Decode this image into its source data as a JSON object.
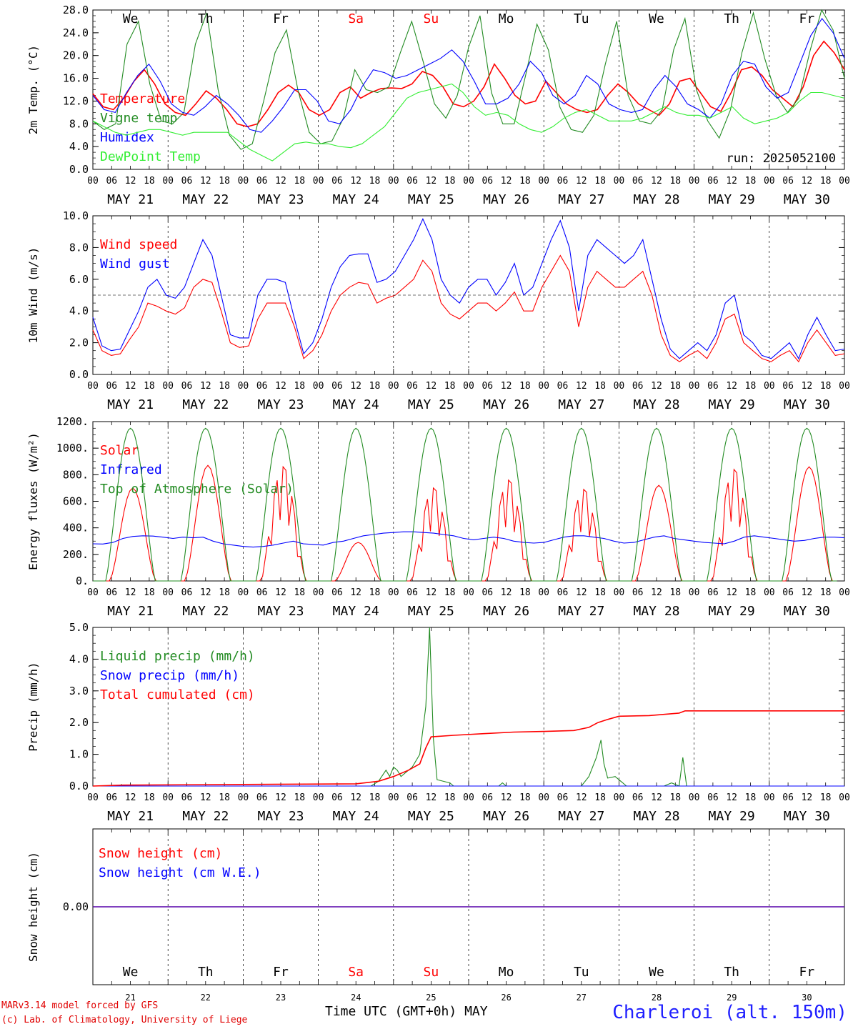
{
  "chart_data": [
    {
      "type": "line",
      "ylabel": "2m Temp. (°C)",
      "ylim": [
        0,
        28
      ],
      "yticks": [
        "0.0",
        "4.0",
        "8.0",
        "12.0",
        "16.0",
        "20.0",
        "24.0",
        "28.0"
      ],
      "grid": "vertical dashed per day",
      "annotation": "run: 2025052100",
      "day_letters": [
        {
          "label": "We",
          "color": "#000000"
        },
        {
          "label": "Th",
          "color": "#000000"
        },
        {
          "label": "Fr",
          "color": "#000000"
        },
        {
          "label": "Sa",
          "color": "#ff0000"
        },
        {
          "label": "Su",
          "color": "#ff0000"
        },
        {
          "label": "Mo",
          "color": "#000000"
        },
        {
          "label": "Tu",
          "color": "#000000"
        },
        {
          "label": "We",
          "color": "#000000"
        },
        {
          "label": "Th",
          "color": "#000000"
        },
        {
          "label": "Fr",
          "color": "#000000"
        }
      ],
      "series": [
        {
          "name": "Temperature",
          "color": "#ff0000",
          "values": [
            13.3,
            11.0,
            10.5,
            12.5,
            15.5,
            17.5,
            15.0,
            11.5,
            10.0,
            9.5,
            11.5,
            13.8,
            12.5,
            10.5,
            8.0,
            7.5,
            8.0,
            10.5,
            13.5,
            14.8,
            13.5,
            10.5,
            9.5,
            10.5,
            13.5,
            14.5,
            12.5,
            13.5,
            14.2,
            14.3,
            14.2,
            15.0,
            17.2,
            16.5,
            14.5,
            11.5,
            11.0,
            12.0,
            14.5,
            18.5,
            16.0,
            13.0,
            11.5,
            12.0,
            15.5,
            13.5,
            11.5,
            10.5,
            10.0,
            10.5,
            13.0,
            15.0,
            13.5,
            11.5,
            10.5,
            9.5,
            11.5,
            15.5,
            16.0,
            13.5,
            11.0,
            10.2,
            13.5,
            17.5,
            18.0,
            16.5,
            14.0,
            12.5,
            11.0,
            14.5,
            20.0,
            22.5,
            20.5,
            17.5
          ]
        },
        {
          "name": "Vigne temp",
          "color": "#228b22",
          "values": [
            8.5,
            7.0,
            8.0,
            22.0,
            26.0,
            15.0,
            8.5,
            8.0,
            10.0,
            22.0,
            27.5,
            14.0,
            6.0,
            3.5,
            4.5,
            12.0,
            20.5,
            24.5,
            14.0,
            6.5,
            4.5,
            5.0,
            9.0,
            17.5,
            14.0,
            13.5,
            14.5,
            20.5,
            26.0,
            19.0,
            11.5,
            9.0,
            13.0,
            21.5,
            27.0,
            13.5,
            8.0,
            8.0,
            16.5,
            25.5,
            21.0,
            11.0,
            7.0,
            6.5,
            9.5,
            18.5,
            26.0,
            13.0,
            8.5,
            8.0,
            10.5,
            21.0,
            26.5,
            14.0,
            8.5,
            5.5,
            10.5,
            20.5,
            27.5,
            19.5,
            13.0,
            10.0,
            12.5,
            21.0,
            28.0,
            24.5,
            16.0
          ]
        },
        {
          "name": "Humidex",
          "color": "#0000ff",
          "values": [
            13.0,
            10.5,
            10.0,
            13.5,
            16.5,
            18.5,
            15.5,
            11.5,
            10.0,
            9.5,
            11.0,
            13.0,
            11.5,
            9.5,
            7.0,
            6.5,
            8.5,
            11.0,
            14.0,
            14.0,
            12.0,
            8.5,
            8.0,
            10.5,
            14.5,
            17.5,
            17.0,
            16.0,
            16.5,
            17.5,
            18.5,
            19.5,
            21.0,
            19.0,
            15.5,
            11.5,
            11.5,
            12.5,
            15.0,
            19.0,
            17.0,
            13.0,
            11.5,
            13.0,
            16.5,
            15.0,
            11.5,
            10.5,
            10.0,
            10.5,
            14.0,
            16.5,
            14.5,
            11.5,
            10.5,
            9.0,
            11.5,
            16.5,
            19.0,
            18.5,
            14.5,
            12.5,
            13.5,
            18.5,
            23.5,
            26.5,
            24.0,
            19.5
          ]
        },
        {
          "name": "DewPoint Temp",
          "color": "#33ee33",
          "values": [
            8.5,
            7.5,
            6.5,
            6.0,
            6.5,
            7.0,
            7.0,
            6.5,
            6.0,
            6.5,
            6.5,
            6.5,
            6.5,
            5.0,
            3.5,
            2.5,
            1.5,
            3.0,
            4.5,
            4.8,
            4.5,
            4.5,
            4.0,
            3.8,
            4.5,
            6.0,
            7.5,
            10.0,
            12.5,
            13.5,
            14.0,
            14.5,
            15.0,
            13.5,
            11.0,
            9.5,
            10.0,
            9.5,
            8.0,
            7.0,
            6.5,
            7.5,
            9.0,
            10.0,
            10.5,
            9.5,
            8.5,
            8.5,
            8.5,
            9.0,
            10.0,
            11.0,
            10.0,
            9.5,
            9.5,
            9.0,
            10.0,
            11.0,
            9.0,
            8.0,
            8.5,
            9.0,
            10.0,
            12.0,
            13.5,
            13.5,
            13.0,
            12.5
          ]
        }
      ]
    },
    {
      "type": "line",
      "ylabel": "10m Wind (m/s)",
      "ylim": [
        0,
        10
      ],
      "yticks": [
        "0.0",
        "2.0",
        "4.0",
        "6.0",
        "8.0",
        "10.0"
      ],
      "reference_line": 5.0,
      "series": [
        {
          "name": "Wind speed",
          "color": "#ff0000",
          "values": [
            2.8,
            1.5,
            1.2,
            1.3,
            2.2,
            3.0,
            4.5,
            4.3,
            4.0,
            3.8,
            4.2,
            5.5,
            6.0,
            5.8,
            4.0,
            2.0,
            1.7,
            1.8,
            3.5,
            4.5,
            4.5,
            4.5,
            3.0,
            1.0,
            1.5,
            2.5,
            4.0,
            5.0,
            5.5,
            5.8,
            5.7,
            4.5,
            4.8,
            5.0,
            5.5,
            6.0,
            7.2,
            6.5,
            4.5,
            3.8,
            3.5,
            4.0,
            4.5,
            4.5,
            4.0,
            4.5,
            5.2,
            4.0,
            4.0,
            5.5,
            6.5,
            7.5,
            6.5,
            3.0,
            5.5,
            6.5,
            6.0,
            5.5,
            5.5,
            6.0,
            6.5,
            5.0,
            2.5,
            1.2,
            0.8,
            1.2,
            1.5,
            1.0,
            2.0,
            3.5,
            3.8,
            2.0,
            1.5,
            1.0,
            0.8,
            1.2,
            1.5,
            0.8,
            2.0,
            2.8,
            2.0,
            1.2,
            1.3
          ]
        },
        {
          "name": "Wind gust",
          "color": "#0000ff",
          "values": [
            3.6,
            1.8,
            1.5,
            1.6,
            2.8,
            4.0,
            5.5,
            6.0,
            5.0,
            4.8,
            5.5,
            7.0,
            8.5,
            7.5,
            5.0,
            2.5,
            2.3,
            2.3,
            5.0,
            6.0,
            6.0,
            5.8,
            3.5,
            1.3,
            2.0,
            3.5,
            5.5,
            6.8,
            7.5,
            7.6,
            7.6,
            5.8,
            6.0,
            6.5,
            7.5,
            8.5,
            9.8,
            8.5,
            6.0,
            5.0,
            4.5,
            5.5,
            6.0,
            6.0,
            5.0,
            5.8,
            7.0,
            5.0,
            5.5,
            7.0,
            8.5,
            9.7,
            8.0,
            4.0,
            7.5,
            8.5,
            8.0,
            7.5,
            7.0,
            7.5,
            8.5,
            6.0,
            3.5,
            1.6,
            1.0,
            1.5,
            2.0,
            1.5,
            2.5,
            4.5,
            5.0,
            2.5,
            2.0,
            1.2,
            1.0,
            1.5,
            2.0,
            1.0,
            2.5,
            3.6,
            2.5,
            1.5,
            1.6
          ]
        }
      ]
    },
    {
      "type": "line",
      "ylabel": "Energy fluxes (W/m²)",
      "ylim": [
        0,
        1200
      ],
      "yticks": [
        "0.",
        "200.",
        "400.",
        "600.",
        "800.",
        "1000.",
        "1200."
      ],
      "series": [
        {
          "name": "Solar",
          "color": "#ff0000",
          "values_per_day_peak": [
            700,
            870,
            860,
            290,
            700,
            760,
            690,
            720,
            840,
            860
          ]
        },
        {
          "name": "Infrared",
          "color": "#0000ff",
          "values": [
            280,
            278,
            290,
            320,
            335,
            340,
            338,
            330,
            320,
            330,
            325,
            330,
            300,
            280,
            270,
            260,
            255,
            260,
            270,
            285,
            300,
            280,
            275,
            270,
            290,
            300,
            320,
            340,
            350,
            360,
            365,
            370,
            370,
            365,
            360,
            350,
            340,
            320,
            310,
            320,
            330,
            320,
            300,
            290,
            285,
            290,
            310,
            330,
            340,
            340,
            330,
            320,
            300,
            285,
            290,
            310,
            330,
            340,
            320,
            310,
            300,
            290,
            285,
            280,
            300,
            330,
            340,
            330,
            320,
            310,
            300,
            305,
            320,
            330,
            330,
            325
          ]
        },
        {
          "name": "Top of Atmosphere (Solar)",
          "color": "#228b22",
          "peak": 1150
        }
      ]
    },
    {
      "type": "line",
      "ylabel": "Precip (mm/h)",
      "ylim": [
        0,
        5
      ],
      "yticks": [
        "0.0",
        "1.0",
        "2.0",
        "3.0",
        "4.0",
        "5.0"
      ],
      "series": [
        {
          "name": "Liquid precip (mm/h)",
          "color": "#228b22",
          "points": [
            [
              0.0,
              0
            ],
            [
              3.6,
              0
            ],
            [
              3.8,
              0.05
            ],
            [
              4.0,
              0
            ],
            [
              37.0,
              0
            ],
            [
              38.0,
              0.15
            ],
            [
              39.0,
              0.5
            ],
            [
              39.5,
              0.3
            ],
            [
              40.0,
              0.6
            ],
            [
              40.5,
              0.5
            ],
            [
              41.0,
              0.3
            ],
            [
              42.5,
              0.6
            ],
            [
              43.5,
              1.0
            ],
            [
              44.3,
              2.5
            ],
            [
              44.8,
              5.0
            ],
            [
              45.3,
              1.5
            ],
            [
              45.8,
              0.2
            ],
            [
              47.5,
              0.1
            ],
            [
              48.0,
              0
            ],
            [
              54.0,
              0
            ],
            [
              54.5,
              0.1
            ],
            [
              55.0,
              0
            ],
            [
              65.0,
              0
            ],
            [
              66.0,
              0.3
            ],
            [
              67.0,
              0.9
            ],
            [
              67.6,
              1.45
            ],
            [
              68.0,
              0.7
            ],
            [
              68.5,
              0.25
            ],
            [
              69.5,
              0.3
            ],
            [
              70.5,
              0.1
            ],
            [
              71.0,
              0
            ],
            [
              76.0,
              0
            ],
            [
              77.0,
              0.1
            ],
            [
              78.0,
              0
            ],
            [
              78.5,
              0.9
            ],
            [
              79.0,
              0
            ],
            [
              100,
              0
            ]
          ]
        },
        {
          "name": "Snow precip (mm/h)",
          "color": "#0000ff",
          "points": [
            [
              0,
              0
            ],
            [
              100,
              0
            ]
          ]
        },
        {
          "name": "Total cumulated (cm)",
          "color": "#ff0000",
          "points": [
            [
              0,
              0
            ],
            [
              4,
              0.03
            ],
            [
              20,
              0.05
            ],
            [
              35,
              0.07
            ],
            [
              38,
              0.15
            ],
            [
              40,
              0.3
            ],
            [
              42,
              0.5
            ],
            [
              43.5,
              0.7
            ],
            [
              44.3,
              1.2
            ],
            [
              45,
              1.55
            ],
            [
              48,
              1.6
            ],
            [
              52,
              1.65
            ],
            [
              56,
              1.7
            ],
            [
              60,
              1.72
            ],
            [
              64,
              1.75
            ],
            [
              66,
              1.85
            ],
            [
              67.2,
              2.0
            ],
            [
              68.5,
              2.1
            ],
            [
              70,
              2.2
            ],
            [
              74,
              2.22
            ],
            [
              78,
              2.3
            ],
            [
              78.8,
              2.37
            ],
            [
              100,
              2.37
            ]
          ]
        }
      ]
    },
    {
      "type": "line",
      "ylabel": "Snow height (cm)",
      "ylim": [
        -0.02,
        0.02
      ],
      "yticks": [
        "0.00"
      ],
      "series": [
        {
          "name": "Snow height (cm)",
          "color": "#ff0000",
          "values": [
            0,
            0
          ]
        },
        {
          "name": "Snow height (cm W.E.)",
          "color": "#0000ff",
          "values": [
            0,
            0
          ]
        }
      ]
    }
  ],
  "hour_ticks": [
    "00",
    "06",
    "12",
    "18"
  ],
  "date_labels": [
    "MAY 21",
    "MAY 22",
    "MAY 23",
    "MAY 24",
    "MAY 25",
    "MAY 26",
    "MAY 27",
    "MAY 28",
    "MAY 29",
    "MAY 30"
  ],
  "day_numbers": [
    "21",
    "22",
    "23",
    "24",
    "25",
    "26",
    "27",
    "28",
    "29",
    "30"
  ],
  "footer": {
    "model": "MARv3.14 model forced by GFS",
    "credit": "(c) Lab. of Climatology, University of Liege",
    "xlabel": "Time UTC (GMT+0h) MAY",
    "station": "Charleroi (alt. 150m)"
  },
  "colors": {
    "axis": "#000000",
    "red": "#ff0000",
    "blue": "#0000ff",
    "green": "#228b22",
    "lightgreen": "#33ee33"
  }
}
